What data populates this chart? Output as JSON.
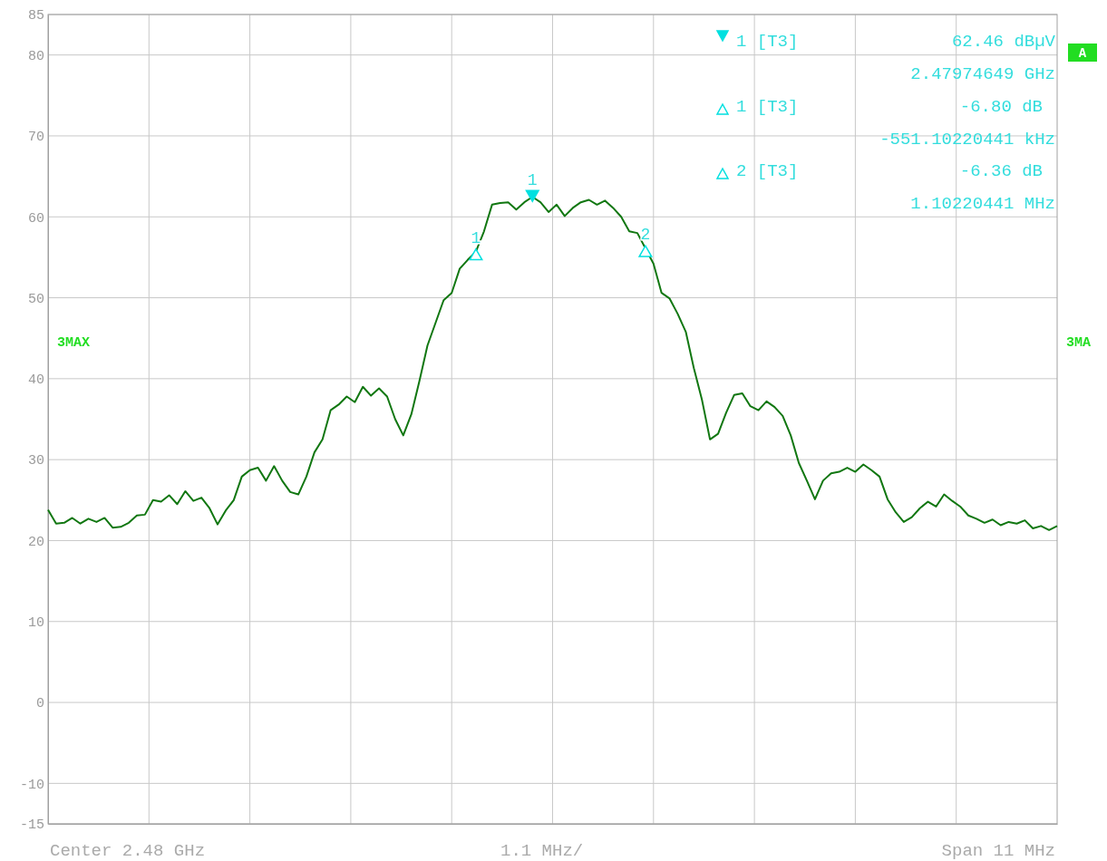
{
  "chart_data": {
    "type": "line",
    "categories": [
      null,
      null,
      null,
      null,
      null,
      null,
      null,
      null,
      null,
      null,
      null,
      null,
      null,
      null,
      null,
      null,
      null,
      null,
      null,
      null,
      null,
      null,
      null,
      null,
      null,
      null,
      null,
      null,
      null,
      null,
      null,
      null,
      null,
      null,
      null,
      null,
      null,
      null,
      null,
      null,
      null,
      null,
      null,
      null,
      null,
      null,
      null,
      null,
      null,
      null,
      null,
      null,
      null,
      null,
      null,
      null,
      null,
      null,
      null,
      null,
      null,
      null,
      null,
      null,
      null,
      null,
      null,
      null,
      null,
      null,
      null,
      null,
      null,
      null,
      null,
      null,
      null,
      null,
      null,
      null,
      null,
      null,
      null,
      null,
      null,
      null,
      null,
      null,
      null,
      null,
      null,
      null,
      null,
      null,
      null,
      null,
      null,
      null,
      null,
      null,
      null,
      null,
      null,
      null,
      null,
      null,
      null,
      null,
      null,
      null,
      null,
      null,
      null,
      null,
      null,
      null,
      null,
      null,
      null,
      null,
      null,
      null,
      null,
      null,
      null,
      null
    ],
    "ylim": [
      -15,
      85
    ],
    "yticks": [
      -15,
      -10,
      0,
      10,
      20,
      30,
      40,
      50,
      60,
      70,
      80,
      85
    ],
    "grid": true,
    "series": [
      {
        "color": "#117711",
        "values": [
          23.8,
          22.1,
          22.2,
          22.8,
          22.1,
          22.7,
          22.3,
          22.8,
          21.6,
          21.7,
          22.2,
          23.1,
          23.2,
          25.0,
          24.8,
          25.6,
          24.5,
          26.1,
          24.9,
          25.3,
          24.0,
          22.0,
          23.7,
          25.0,
          27.9,
          28.7,
          29.0,
          27.4,
          29.2,
          27.4,
          26.0,
          25.7,
          27.9,
          30.9,
          32.5,
          36.1,
          36.8,
          37.8,
          37.1,
          39.0,
          37.9,
          38.8,
          37.8,
          35.0,
          33.0,
          35.6,
          39.7,
          44.1,
          46.9,
          49.7,
          50.6,
          53.6,
          54.7,
          55.7,
          58.2,
          61.5,
          61.7,
          61.8,
          60.9,
          61.8,
          62.46,
          61.8,
          60.6,
          61.5,
          60.1,
          61.1,
          61.8,
          62.1,
          61.5,
          62.0,
          61.1,
          60.0,
          58.2,
          58.0,
          56.1,
          54.2,
          50.6,
          49.9,
          48.0,
          45.8,
          41.3,
          37.4,
          32.5,
          33.2,
          35.8,
          38.0,
          38.2,
          36.6,
          36.1,
          37.2,
          36.5,
          35.4,
          33.0,
          29.6,
          27.4,
          25.1,
          27.4,
          28.3,
          28.5,
          29.0,
          28.5,
          29.4,
          28.7,
          27.9,
          25.1,
          23.5,
          22.3,
          22.9,
          24.0,
          24.8,
          24.2,
          25.7,
          24.9,
          24.2,
          23.1,
          22.7,
          22.2,
          22.6,
          21.9,
          22.3,
          22.1,
          22.5,
          21.5,
          21.8,
          21.3,
          21.8
        ]
      }
    ],
    "annotations": [
      "1 [T3]",
      "62.46 dBµV",
      "2.47974649 GHz",
      "1 [T3]",
      "-6.80 dB",
      "-551.10220441 kHz",
      "2 [T3]",
      "-6.36 dB",
      "1.10220441 MHz",
      "3MAX",
      "3MA",
      "A",
      "Center 2.48 GHz",
      "1.1 MHz/",
      "Span 11 MHz",
      {
        "text": "1",
        "y": 62.46
      },
      {
        "text": "1",
        "y": 55.7
      },
      {
        "text": "2",
        "y": 56.1
      }
    ]
  }
}
